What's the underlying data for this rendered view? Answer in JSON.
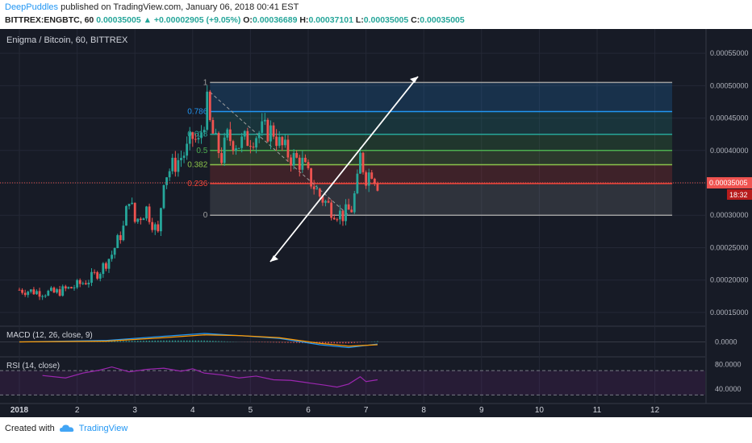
{
  "header": {
    "author": "DeepPuddles",
    "published": "published on TradingView.com, January 06, 2018 00:41 EST",
    "symbol": "BITTREX:ENGBTC, 60",
    "last": "0.00035005",
    "change": "+0.00002905 (+9.05%)",
    "o_label": "O:",
    "o": "0.00036689",
    "h_label": "H:",
    "h": "0.00037101",
    "l_label": "L:",
    "l": "0.00035005",
    "c_label": "C:",
    "c": "0.00035005"
  },
  "footer": {
    "created_with": "Created with",
    "brand": "TradingView"
  },
  "colors": {
    "bg": "#171b26",
    "grid": "#242836",
    "up": "#26a69a",
    "down": "#ef5350",
    "macd": "#2196f3",
    "signal": "#ff9800",
    "rsi": "#9c27b0"
  },
  "chart_data": [
    {
      "type": "candlestick",
      "title": "Enigma / Bitcoin, 60, BITTREX",
      "x": [
        "2018",
        "2",
        "3",
        "4",
        "5",
        "6",
        "7",
        "8",
        "9",
        "10",
        "11",
        "12"
      ],
      "y_ticks": [
        "0.00055000",
        "0.00050000",
        "0.00045000",
        "0.00040000",
        "0.00035000",
        "0.00030000",
        "0.00025000",
        "0.00020000",
        "0.00015000"
      ],
      "ylim": [
        0.00013,
        0.00058
      ],
      "last_price_label": "0.00035005",
      "countdown_label": "18:32",
      "close_series": [
        [
          0.0,
          0.000185
        ],
        [
          0.3,
          0.000182
        ],
        [
          0.6,
          0.00018
        ],
        [
          0.9,
          0.000188
        ],
        [
          1.2,
          0.0002
        ],
        [
          1.4,
          0.000215
        ],
        [
          1.6,
          0.00024
        ],
        [
          1.8,
          0.00028
        ],
        [
          1.9,
          0.00033
        ],
        [
          2.0,
          0.00029
        ],
        [
          2.2,
          0.00031
        ],
        [
          2.4,
          0.00027
        ],
        [
          2.5,
          0.00036
        ],
        [
          2.7,
          0.00038
        ],
        [
          2.9,
          0.0004
        ],
        [
          3.0,
          0.00042
        ],
        [
          3.1,
          0.00041
        ],
        [
          3.2,
          0.00045
        ],
        [
          3.25,
          0.00047
        ],
        [
          3.3,
          0.00044
        ],
        [
          3.4,
          0.00041
        ],
        [
          3.5,
          0.00039
        ],
        [
          3.6,
          0.00042
        ],
        [
          3.8,
          0.00041
        ],
        [
          4.0,
          0.00042
        ],
        [
          4.2,
          0.00043
        ],
        [
          4.4,
          0.00043
        ],
        [
          4.5,
          0.00041
        ],
        [
          4.7,
          0.00039
        ],
        [
          4.9,
          0.00038
        ],
        [
          5.0,
          0.00036
        ],
        [
          5.2,
          0.00033
        ],
        [
          5.4,
          0.00031
        ],
        [
          5.6,
          0.0003
        ],
        [
          5.75,
          0.00031
        ],
        [
          5.85,
          0.00035
        ],
        [
          5.9,
          0.00039
        ],
        [
          6.0,
          0.00036
        ],
        [
          6.1,
          0.00037
        ],
        [
          6.2,
          0.00035005
        ]
      ],
      "fib_levels": [
        {
          "label": "1",
          "value": 0.000505,
          "color": "#9e9e9e"
        },
        {
          "label": "0.786",
          "value": 0.00046,
          "color": "#2196f3"
        },
        {
          "label": "0.618",
          "value": 0.000425,
          "color": "#26a69a"
        },
        {
          "label": "0.5",
          "value": 0.0004,
          "color": "#4caf50"
        },
        {
          "label": "0.382",
          "value": 0.000378,
          "color": "#8bc34a"
        },
        {
          "label": "0.236",
          "value": 0.000349,
          "color": "#f44336"
        },
        {
          "label": "0",
          "value": 0.0003,
          "color": "#9e9e9e"
        }
      ],
      "fib_range_x": [
        3.3,
        11.3
      ]
    },
    {
      "type": "line",
      "title": "MACD (12, 26, close, 9)",
      "y_ticks": [
        "0.0000"
      ],
      "ylim": [
        -2e-05,
        2e-05
      ],
      "series": [
        {
          "values": [
            [
              0,
              0.0
            ],
            [
              1.5,
              2e-06
            ],
            [
              2.5,
              8e-06
            ],
            [
              3.2,
              1.2e-05
            ],
            [
              3.8,
              9e-06
            ],
            [
              4.5,
              5e-06
            ],
            [
              5.2,
              -4e-06
            ],
            [
              5.7,
              -8e-06
            ],
            [
              6.2,
              -3e-06
            ]
          ]
        },
        {
          "values": [
            [
              0,
              0.0
            ],
            [
              1.5,
              1e-06
            ],
            [
              2.5,
              6e-06
            ],
            [
              3.2,
              1e-05
            ],
            [
              3.8,
              9e-06
            ],
            [
              4.5,
              6e-06
            ],
            [
              5.2,
              -2e-06
            ],
            [
              5.7,
              -6e-06
            ],
            [
              6.2,
              -4e-06
            ]
          ]
        }
      ]
    },
    {
      "type": "line",
      "title": "RSI (14, close)",
      "y_ticks": [
        "80.0000",
        "40.0000"
      ],
      "ylim": [
        20,
        90
      ],
      "bands": [
        70,
        30
      ],
      "series": [
        {
          "values": [
            [
              0.4,
              62
            ],
            [
              0.8,
              58
            ],
            [
              1.1,
              66
            ],
            [
              1.4,
              71
            ],
            [
              1.6,
              76
            ],
            [
              1.9,
              68
            ],
            [
              2.2,
              72
            ],
            [
              2.5,
              74
            ],
            [
              2.8,
              69
            ],
            [
              3.0,
              73
            ],
            [
              3.2,
              66
            ],
            [
              3.5,
              63
            ],
            [
              3.8,
              58
            ],
            [
              4.1,
              61
            ],
            [
              4.4,
              55
            ],
            [
              4.7,
              54
            ],
            [
              5.0,
              50
            ],
            [
              5.3,
              46
            ],
            [
              5.5,
              43
            ],
            [
              5.7,
              48
            ],
            [
              5.9,
              60
            ],
            [
              6.0,
              52
            ],
            [
              6.2,
              55
            ]
          ]
        }
      ]
    }
  ]
}
